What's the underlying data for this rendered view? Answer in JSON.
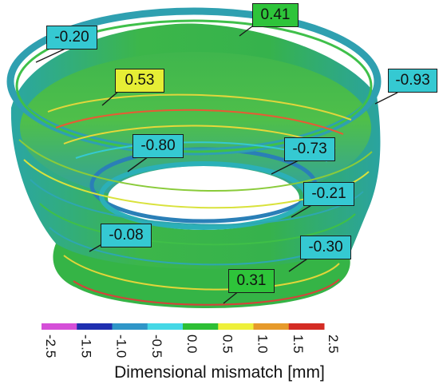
{
  "callouts": [
    {
      "id": "c1",
      "value": "-0.20",
      "color": "#35c9d2"
    },
    {
      "id": "c2",
      "value": "0.41",
      "color": "#2ec43a"
    },
    {
      "id": "c3",
      "value": "-0.93",
      "color": "#35c9d2"
    },
    {
      "id": "c4",
      "value": "0.53",
      "color": "#e6ee35"
    },
    {
      "id": "c5",
      "value": "-0.80",
      "color": "#35c9d2"
    },
    {
      "id": "c6",
      "value": "-0.73",
      "color": "#35c9d2"
    },
    {
      "id": "c7",
      "value": "-0.21",
      "color": "#35c9d2"
    },
    {
      "id": "c8",
      "value": "-0.08",
      "color": "#35c9d2"
    },
    {
      "id": "c9",
      "value": "-0.30",
      "color": "#35c9d2"
    },
    {
      "id": "c10",
      "value": "0.31",
      "color": "#2ec43a"
    }
  ],
  "scale": {
    "title": "Dimensional mismatch [mm]",
    "ticks": [
      "-2.5",
      "-1.5",
      "-1.0",
      "-0.5",
      "0.0",
      "0.5",
      "1.0",
      "1.5",
      "2.5"
    ],
    "colors": [
      "#d54fd8",
      "#1f2fb0",
      "#2f96c8",
      "#45d8e6",
      "#2dbf35",
      "#eef03a",
      "#e69a2a",
      "#d42c24"
    ]
  }
}
